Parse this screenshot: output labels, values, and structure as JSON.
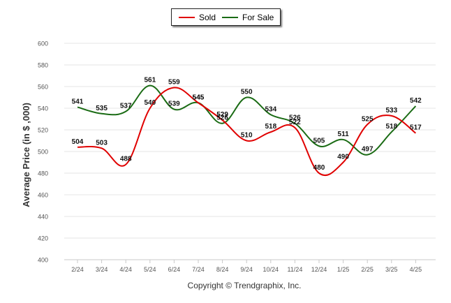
{
  "chart_data": {
    "type": "line",
    "categories": [
      "2/24",
      "3/24",
      "4/24",
      "5/24",
      "6/24",
      "7/24",
      "8/24",
      "9/24",
      "10/24",
      "11/24",
      "12/24",
      "1/25",
      "2/25",
      "3/25",
      "4/25"
    ],
    "series": [
      {
        "name": "Sold",
        "color": "#e00000",
        "values": [
          504,
          503,
          488,
          540,
          559,
          545,
          529,
          510,
          518,
          522,
          480,
          490,
          525,
          533,
          517
        ]
      },
      {
        "name": "For Sale",
        "color": "#1a6b14",
        "values": [
          541,
          535,
          537,
          561,
          539,
          545,
          526,
          550,
          534,
          526,
          505,
          511,
          497,
          518,
          542
        ]
      }
    ],
    "ylabel": "Average Price (in $ ,000)",
    "xlabel": "",
    "ylim": [
      400,
      600
    ],
    "yticks": [
      400,
      420,
      440,
      460,
      480,
      500,
      520,
      540,
      560,
      580,
      600
    ],
    "grid": true,
    "legend": "top-center"
  },
  "footer": {
    "copyright": "Copyright © Trendgraphix, Inc."
  }
}
